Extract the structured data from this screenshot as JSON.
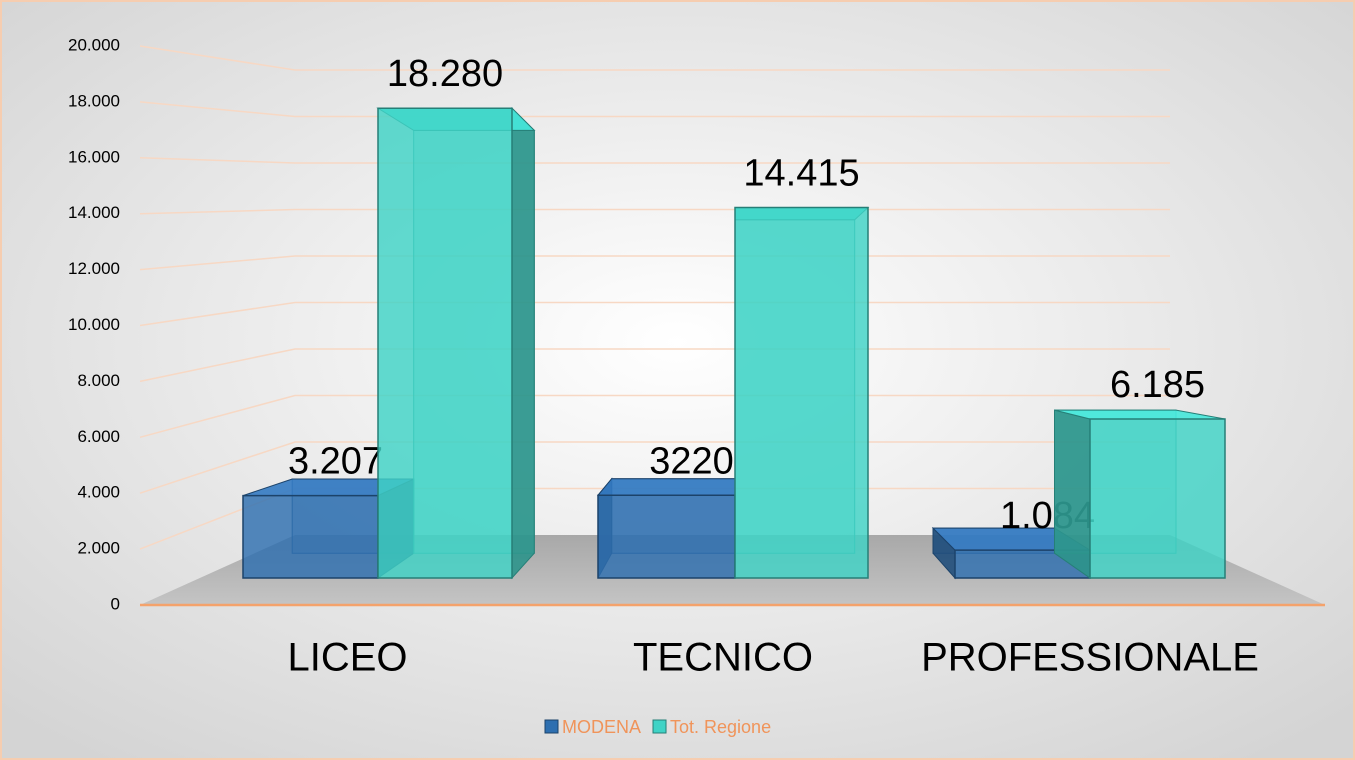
{
  "chart_data": {
    "type": "bar3d",
    "categories": [
      "LICEO",
      "TECNICO",
      "PROFESSIONALE"
    ],
    "series": [
      {
        "name": "MODENA",
        "color": "#2e6fb0",
        "values": [
          3207,
          3220,
          1084
        ],
        "value_labels": [
          "3.207",
          "3220",
          "1.084"
        ]
      },
      {
        "name": "Tot. Regione",
        "color": "#3fd3c6",
        "values": [
          18280,
          14415,
          6185
        ],
        "value_labels": [
          "18.280",
          "14.415",
          "6.185"
        ]
      }
    ],
    "ylim": [
      0,
      20000
    ],
    "yticks": [
      0,
      {
        "value": 2000,
        "label": "2.000"
      },
      {
        "value": 4000,
        "label": "4.000"
      },
      {
        "value": 6000,
        "label": "6.000"
      },
      {
        "value": 8000,
        "label": "8.000"
      },
      {
        "value": 10000,
        "label": "10.000"
      },
      {
        "value": 12000,
        "label": "12.000"
      },
      {
        "value": 14000,
        "label": "14.000"
      },
      {
        "value": 16000,
        "label": "16.000"
      },
      {
        "value": 18000,
        "label": "18.000"
      },
      {
        "value": 20000,
        "label": "20.000"
      }
    ],
    "grid": true,
    "legend": "bottom"
  }
}
